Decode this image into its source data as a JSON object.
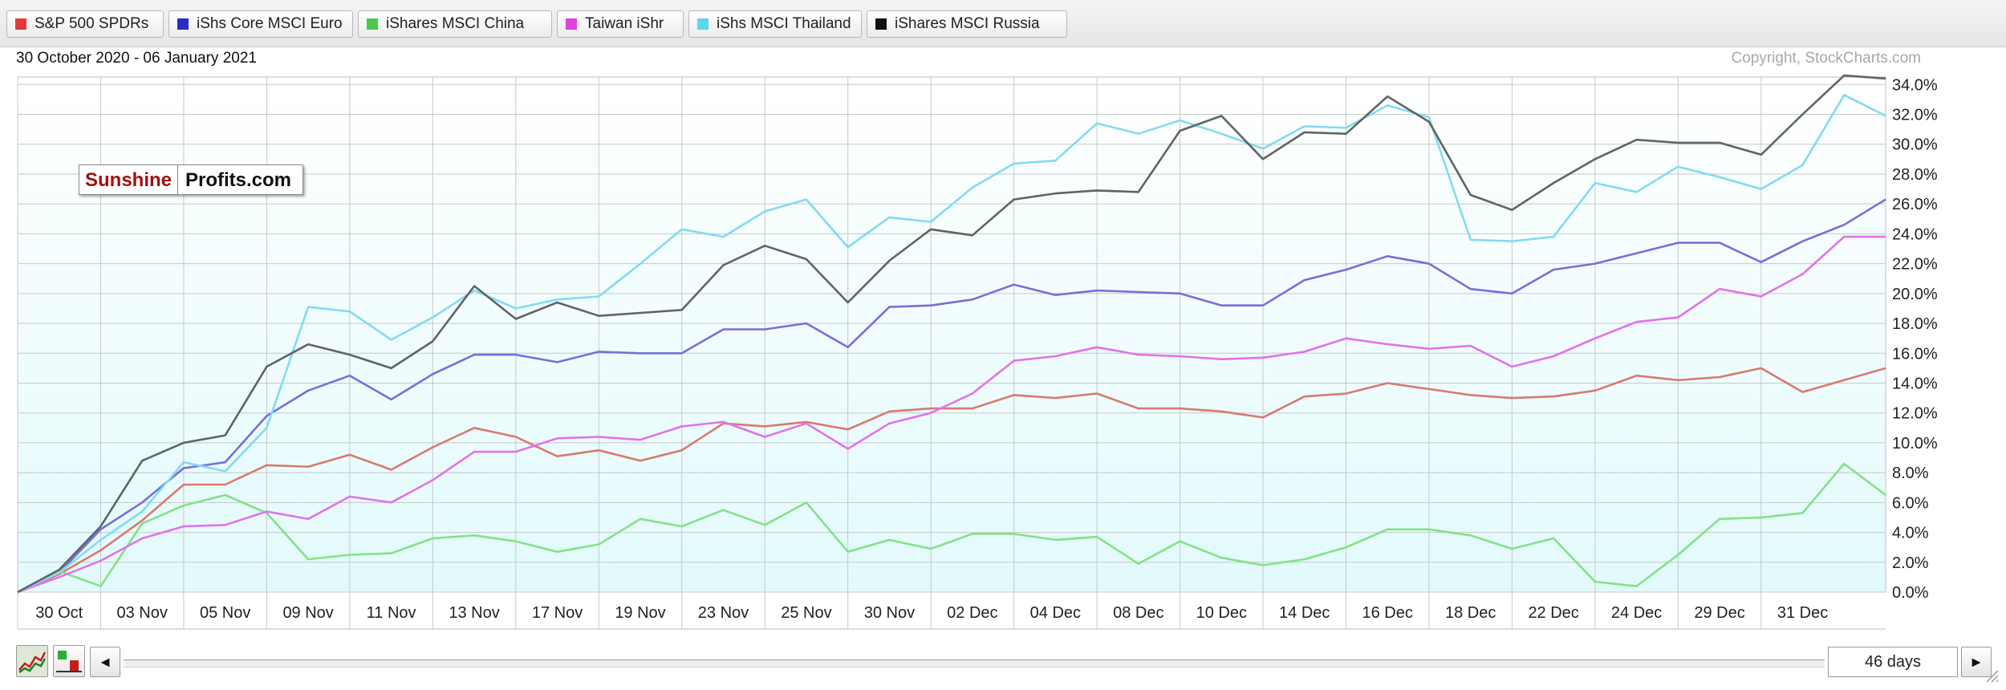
{
  "header": {
    "date_range": "30 October 2020 - 06 January 2021",
    "copyright": "Copyright, StockCharts.com"
  },
  "brand": {
    "left": "Sunshine",
    "right": "Profits.com"
  },
  "controls": {
    "days": "46 days",
    "left_arrow": "◄",
    "right_arrow": "►"
  },
  "chart_data": {
    "type": "line",
    "y_unit": "%",
    "ylim": [
      0,
      34.5
    ],
    "yticks": [
      "0.0%",
      "2.0%",
      "4.0%",
      "6.0%",
      "8.0%",
      "10.0%",
      "12.0%",
      "14.0%",
      "16.0%",
      "18.0%",
      "20.0%",
      "22.0%",
      "24.0%",
      "26.0%",
      "28.0%",
      "30.0%",
      "32.0%",
      "34.0%"
    ],
    "x_labels": [
      "30 Oct",
      "03 Nov",
      "05 Nov",
      "09 Nov",
      "11 Nov",
      "13 Nov",
      "17 Nov",
      "19 Nov",
      "23 Nov",
      "25 Nov",
      "30 Nov",
      "02 Dec",
      "04 Dec",
      "08 Dec",
      "10 Dec",
      "14 Dec",
      "16 Dec",
      "18 Dec",
      "22 Dec",
      "24 Dec",
      "29 Dec",
      "31 Dec"
    ],
    "grid": true,
    "legend_position": "top",
    "series": [
      {
        "name": "S&P 500 SPDRs",
        "color": "#e03a3a",
        "line_color": "#d87a6e",
        "values": [
          0,
          1.2,
          2.8,
          4.8,
          7.2,
          7.2,
          8.5,
          8.4,
          9.2,
          8.2,
          9.7,
          11,
          10.4,
          9.1,
          9.5,
          8.8,
          9.5,
          11.3,
          11.1,
          11.4,
          10.9,
          12.1,
          12.3,
          12.3,
          13.2,
          13,
          13.3,
          12.3,
          12.3,
          12.1,
          11.7,
          13.1,
          13.3,
          14,
          13.6,
          13.2,
          13,
          13.1,
          13.5,
          14.5,
          14.2,
          14.4,
          15,
          13.4,
          14.2,
          15
        ]
      },
      {
        "name": "iShs Core MSCI Euro",
        "color": "#2a2ac8",
        "line_color": "#7a6ed8",
        "values": [
          0,
          1.3,
          4.2,
          6,
          8.3,
          8.7,
          11.8,
          13.5,
          14.5,
          12.9,
          14.6,
          15.9,
          15.9,
          15.4,
          16.1,
          16,
          16,
          17.6,
          17.6,
          18,
          16.4,
          19.1,
          19.2,
          19.6,
          20.6,
          19.9,
          20.2,
          20.1,
          20,
          19.2,
          19.2,
          20.9,
          21.6,
          22.5,
          22,
          20.3,
          20,
          21.6,
          22,
          22.7,
          23.4,
          23.4,
          22.1,
          23.5,
          24.6,
          26.3
        ]
      },
      {
        "name": "iShares MSCI China",
        "color": "#4cc84c",
        "line_color": "#84e284",
        "values": [
          0,
          1.4,
          0.4,
          4.6,
          5.8,
          6.5,
          5.3,
          2.2,
          2.5,
          2.6,
          3.6,
          3.8,
          3.4,
          2.7,
          3.2,
          4.9,
          4.4,
          5.5,
          4.5,
          6,
          2.7,
          3.5,
          2.9,
          3.9,
          3.9,
          3.5,
          3.7,
          1.9,
          3.4,
          2.3,
          1.8,
          2.2,
          3,
          4.2,
          4.2,
          3.8,
          2.9,
          3.6,
          0.7,
          0.4,
          2.5,
          4.9,
          5,
          5.3,
          8.6,
          6.5
        ]
      },
      {
        "name": "Taiwan iShr",
        "color": "#e040e0",
        "line_color": "#e272ea",
        "values": [
          0,
          1,
          2.1,
          3.6,
          4.4,
          4.5,
          5.4,
          4.9,
          6.4,
          6,
          7.5,
          9.4,
          9.4,
          10.3,
          10.4,
          10.2,
          11.1,
          11.4,
          10.4,
          11.3,
          9.6,
          11.3,
          12,
          13.3,
          15.5,
          15.8,
          16.4,
          15.9,
          15.8,
          15.6,
          15.7,
          16.1,
          17,
          16.6,
          16.3,
          16.5,
          15.1,
          15.8,
          17,
          18.1,
          18.4,
          20.3,
          19.8,
          21.3,
          23.8,
          23.8
        ]
      },
      {
        "name": "iShs MSCI Thailand",
        "color": "#5ad8f0",
        "line_color": "#82dcee",
        "values": [
          0,
          1.3,
          3.5,
          5.4,
          8.7,
          8.1,
          11,
          19.1,
          18.8,
          16.9,
          18.4,
          20.2,
          19,
          19.6,
          19.8,
          22,
          24.3,
          23.8,
          25.5,
          26.3,
          23.1,
          25.1,
          24.8,
          27.1,
          28.7,
          28.9,
          31.4,
          30.7,
          31.6,
          30.7,
          29.7,
          31.2,
          31.1,
          32.6,
          31.8,
          23.6,
          23.5,
          23.8,
          27.4,
          26.8,
          28.5,
          27.8,
          27,
          28.6,
          33.3,
          31.9
        ]
      },
      {
        "name": "iShares MSCI Russia",
        "color": "#111111",
        "line_color": "#606464",
        "values": [
          0,
          1.5,
          4.4,
          8.8,
          10,
          10.5,
          15.1,
          16.6,
          15.9,
          15,
          16.8,
          20.5,
          18.3,
          19.4,
          18.5,
          18.7,
          18.9,
          21.9,
          23.2,
          22.3,
          19.4,
          22.2,
          24.3,
          23.9,
          26.3,
          26.7,
          26.9,
          26.8,
          30.9,
          31.9,
          29,
          30.8,
          30.7,
          33.2,
          31.5,
          26.6,
          25.6,
          27.4,
          29,
          30.3,
          30.1,
          30.1,
          29.3,
          32,
          34.6,
          34.4
        ]
      }
    ]
  }
}
